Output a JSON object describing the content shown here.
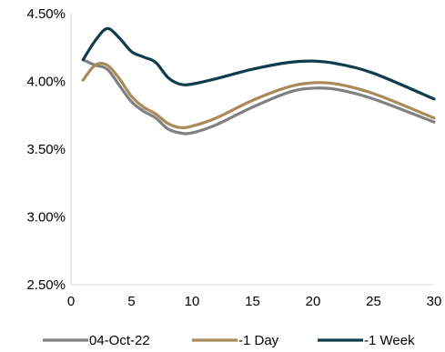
{
  "chart_data": {
    "type": "line",
    "title": "",
    "xlabel": "",
    "ylabel": "",
    "xlim": [
      0,
      30
    ],
    "ylim": [
      2.5,
      4.5
    ],
    "x_ticks": [
      0,
      5,
      10,
      15,
      20,
      25,
      30
    ],
    "x_tick_labels": [
      "0",
      "5",
      "10",
      "15",
      "20",
      "25",
      "30"
    ],
    "y_ticks": [
      2.5,
      3.0,
      3.5,
      4.0,
      4.5
    ],
    "y_tick_labels": [
      "2.50%",
      "3.00%",
      "3.50%",
      "4.00%",
      "4.50%"
    ],
    "grid": false,
    "legend_position": "bottom",
    "series": [
      {
        "name": "04-Oct-22",
        "color": "#808080",
        "x": [
          1,
          2,
          3,
          4,
          5,
          6,
          7,
          8,
          9,
          10,
          12,
          15,
          18,
          20,
          22,
          25,
          30
        ],
        "y": [
          4.16,
          4.12,
          4.09,
          3.97,
          3.85,
          3.78,
          3.73,
          3.65,
          3.62,
          3.62,
          3.68,
          3.81,
          3.92,
          3.95,
          3.94,
          3.87,
          3.7
        ]
      },
      {
        "name": "-1 Day",
        "color": "#A88B5A",
        "x": [
          1,
          2,
          3,
          4,
          5,
          6,
          7,
          8,
          9,
          10,
          12,
          15,
          18,
          20,
          22,
          25,
          30
        ],
        "y": [
          4.01,
          4.12,
          4.12,
          4.02,
          3.89,
          3.81,
          3.76,
          3.69,
          3.66,
          3.67,
          3.73,
          3.86,
          3.96,
          3.99,
          3.98,
          3.91,
          3.73
        ]
      },
      {
        "name": "-1 Week",
        "color": "#0F3D4E",
        "x": [
          1,
          2,
          3,
          4,
          5,
          6,
          7,
          8,
          9,
          10,
          12,
          15,
          18,
          20,
          22,
          25,
          30
        ],
        "y": [
          4.16,
          4.3,
          4.39,
          4.32,
          4.22,
          4.18,
          4.14,
          4.03,
          3.98,
          3.98,
          4.02,
          4.09,
          4.14,
          4.15,
          4.13,
          4.06,
          3.87
        ]
      }
    ]
  }
}
